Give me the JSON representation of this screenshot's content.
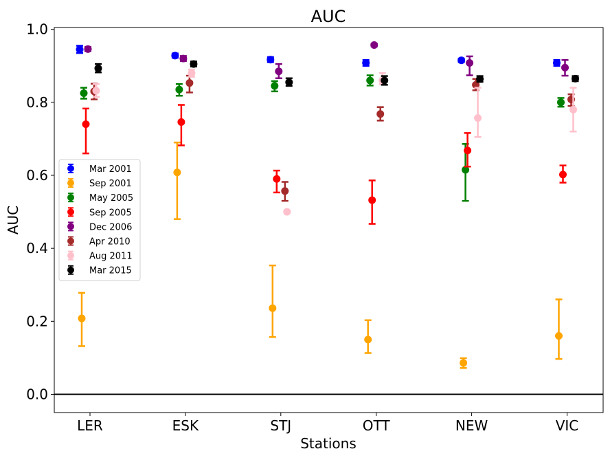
{
  "chart_data": {
    "type": "scatter",
    "title": "AUC",
    "xlabel": "Stations",
    "ylabel": "AUC",
    "categories": [
      "LER",
      "ESK",
      "STJ",
      "OTT",
      "NEW",
      "VIC"
    ],
    "ylim": [
      -0.05,
      1.005
    ],
    "yticks": [
      "0.0",
      "0.2",
      "0.4",
      "0.6",
      "0.8",
      "1.0"
    ],
    "reference_line": 0,
    "grid": false,
    "legend_placement": "center-left",
    "series": [
      {
        "name": "Mar 2001",
        "color": "#0000ff",
        "values": [
          0.945,
          0.928,
          0.917,
          0.908,
          0.915,
          0.908
        ],
        "err_low": [
          0.935,
          0.922,
          0.91,
          0.9,
          0.91,
          0.9
        ],
        "err_high": [
          0.955,
          0.934,
          0.924,
          0.916,
          0.92,
          0.916
        ]
      },
      {
        "name": "Sep 2001",
        "color": "#ffa500",
        "values": [
          0.208,
          0.608,
          0.236,
          0.15,
          0.086,
          0.16
        ],
        "err_low": [
          0.132,
          0.48,
          0.157,
          0.113,
          0.072,
          0.097
        ],
        "err_high": [
          0.278,
          0.69,
          0.353,
          0.203,
          0.099,
          0.26
        ]
      },
      {
        "name": "May 2005",
        "color": "#008000",
        "values": [
          0.825,
          0.835,
          0.845,
          0.86,
          0.615,
          0.8
        ],
        "err_low": [
          0.81,
          0.818,
          0.83,
          0.846,
          0.53,
          0.788
        ],
        "err_high": [
          0.84,
          0.85,
          0.858,
          0.874,
          0.686,
          0.812
        ]
      },
      {
        "name": "Sep 2005",
        "color": "#ff0000",
        "values": [
          0.74,
          0.746,
          0.59,
          0.532,
          0.668,
          0.602
        ],
        "err_low": [
          0.66,
          0.682,
          0.553,
          0.467,
          0.624,
          0.58
        ],
        "err_high": [
          0.783,
          0.793,
          0.613,
          0.586,
          0.716,
          0.627
        ]
      },
      {
        "name": "Dec 2006",
        "color": "#800080",
        "values": [
          0.946,
          0.92,
          0.885,
          0.957,
          0.908,
          0.895
        ],
        "err_low": [
          0.94,
          0.913,
          0.866,
          0.953,
          0.874,
          0.873
        ],
        "err_high": [
          0.952,
          0.927,
          0.905,
          0.961,
          0.926,
          0.916
        ]
      },
      {
        "name": "Apr 2010",
        "color": "#a52a2a",
        "values": [
          0.83,
          0.853,
          0.557,
          0.768,
          0.848,
          0.808
        ],
        "err_low": [
          0.808,
          0.827,
          0.53,
          0.75,
          0.833,
          0.79
        ],
        "err_high": [
          0.851,
          0.873,
          0.582,
          0.787,
          0.864,
          0.822
        ]
      },
      {
        "name": "Aug 2011",
        "color": "#ffc0cb",
        "values": [
          0.832,
          0.88,
          0.5,
          0.86,
          0.757,
          0.78
        ],
        "err_low": [
          0.815,
          0.87,
          0.497,
          0.85,
          0.705,
          0.72
        ],
        "err_high": [
          0.85,
          0.89,
          0.503,
          0.88,
          0.84,
          0.84
        ]
      },
      {
        "name": "Mar 2015",
        "color": "#000000",
        "values": [
          0.893,
          0.905,
          0.855,
          0.86,
          0.864,
          0.865
        ],
        "err_low": [
          0.882,
          0.898,
          0.845,
          0.848,
          0.856,
          0.858
        ],
        "err_high": [
          0.905,
          0.912,
          0.866,
          0.872,
          0.872,
          0.872
        ]
      }
    ]
  }
}
